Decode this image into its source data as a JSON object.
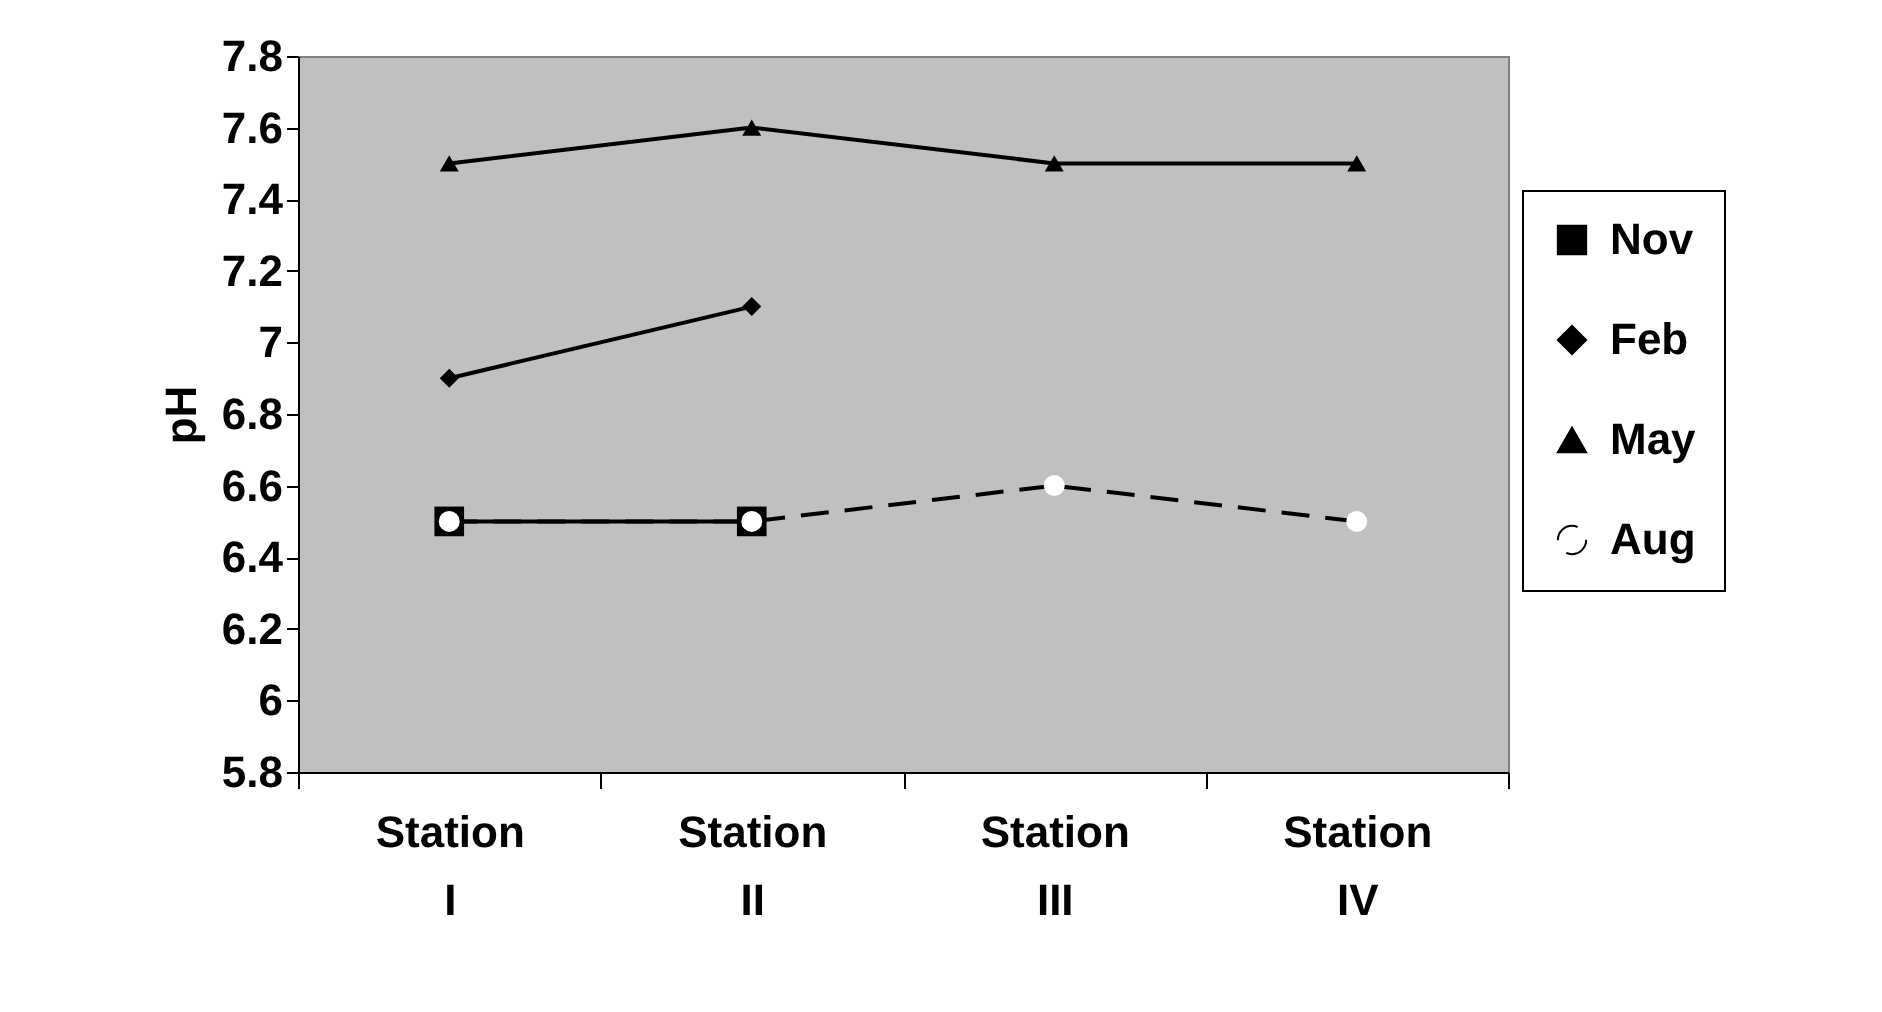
{
  "chart_data": {
    "type": "line",
    "ylabel": "pH",
    "categories": [
      "Station I",
      "Station II",
      "Station III",
      "Station IV"
    ],
    "ylim": [
      5.8,
      7.8
    ],
    "yticks": [
      5.8,
      6,
      6.2,
      6.4,
      6.6,
      6.8,
      7,
      7.2,
      7.4,
      7.6,
      7.8
    ],
    "grid": false,
    "legend": "right",
    "series": [
      {
        "name": "Nov",
        "color": "#000000",
        "marker": "square",
        "line_style": "solid",
        "values": [
          6.5,
          6.5,
          null,
          null
        ]
      },
      {
        "name": "Feb",
        "color": "#000000",
        "marker": "diamond",
        "line_style": "solid",
        "values": [
          6.9,
          7.1,
          null,
          null
        ]
      },
      {
        "name": "May",
        "color": "#000000",
        "marker": "triangle",
        "line_style": "solid",
        "values": [
          7.5,
          7.6,
          7.5,
          7.5
        ]
      },
      {
        "name": "Aug",
        "color": "#000000",
        "marker": "circle",
        "colors": [
          "#ffffff",
          "#ffffff",
          "#ffffff",
          "#ffffff"
        ],
        "line_style": "dashed",
        "values": [
          6.5,
          6.5,
          6.6,
          6.5
        ]
      }
    ]
  }
}
